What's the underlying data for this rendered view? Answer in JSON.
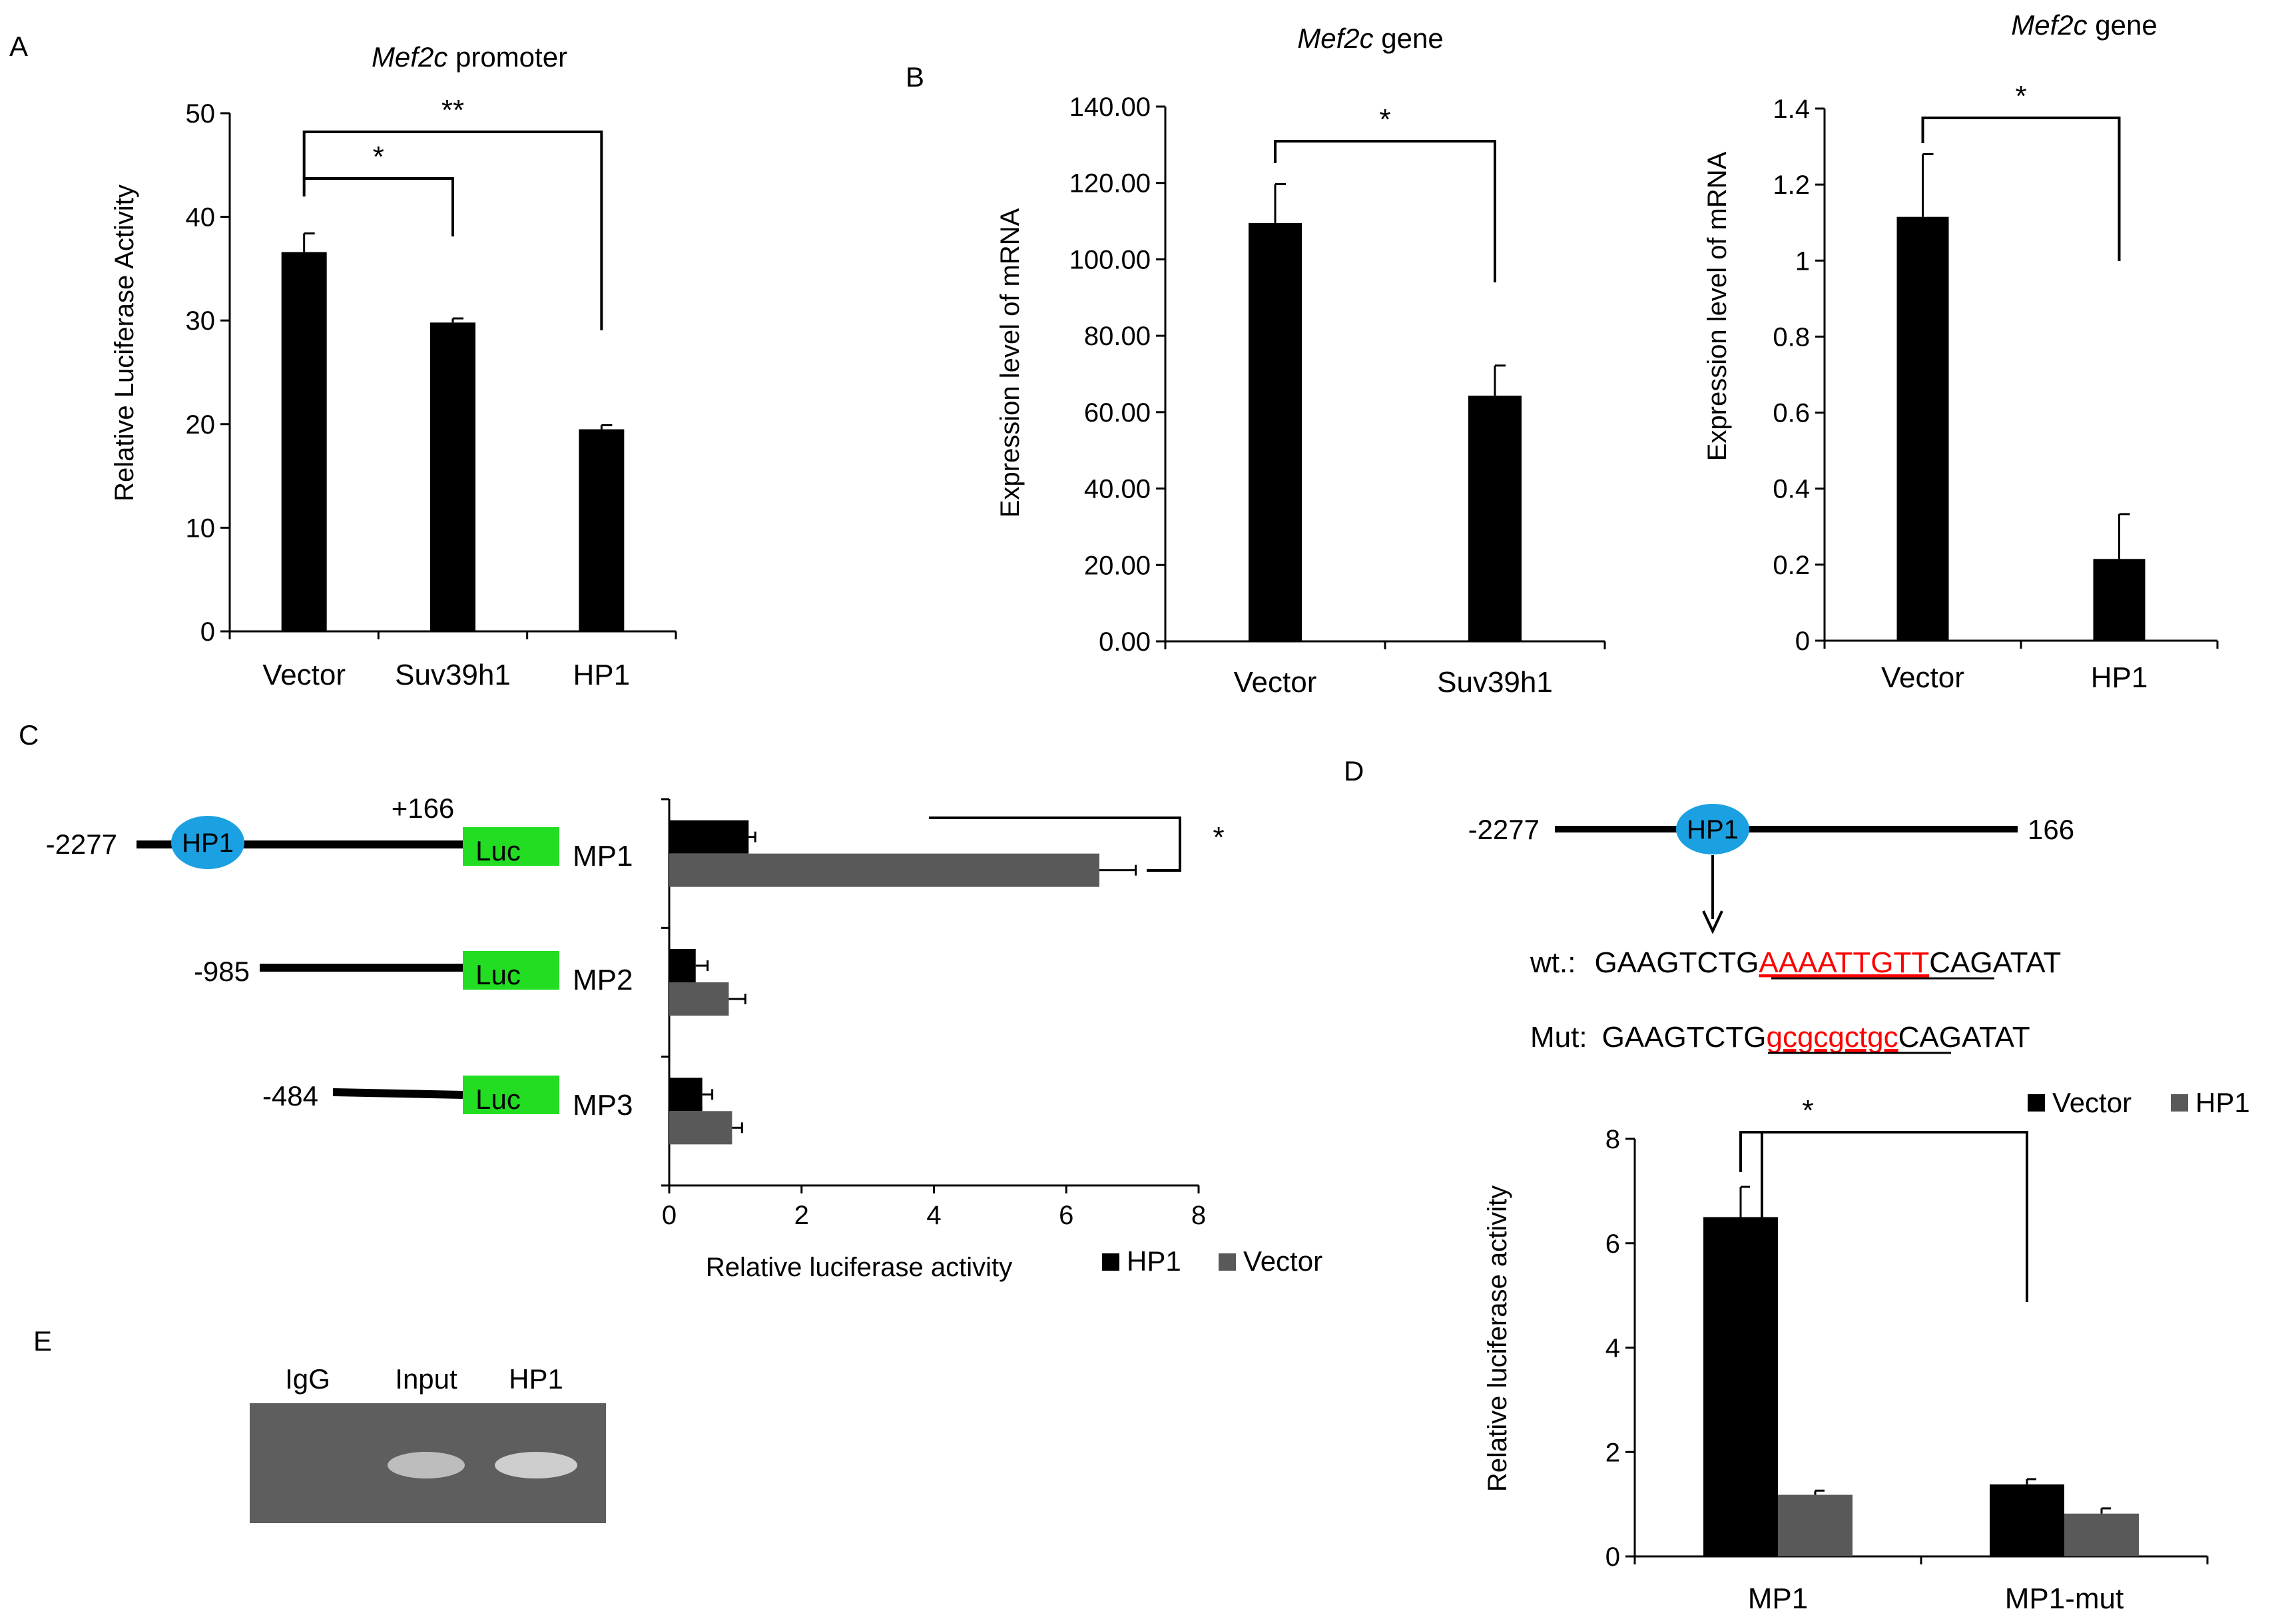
{
  "colors": {
    "black": "#000000",
    "grey": "#595959",
    "blue": "#1ba1e2",
    "green": "#22dd22",
    "red": "#ff0000"
  },
  "panels": {
    "A": "A",
    "B": "B",
    "C": "C",
    "D": "D",
    "E": "E"
  },
  "chart_data": [
    {
      "id": "A",
      "type": "bar",
      "title_italic": "Mef2c",
      "title_rest": " promoter",
      "ylabel": "Relative Luciferase Activity",
      "ylim": [
        0,
        50
      ],
      "yticks": [
        "0",
        "10",
        "20",
        "30",
        "40",
        "50"
      ],
      "categories": [
        "Vector",
        "Suv39h1",
        "HP1"
      ],
      "values": [
        36.6,
        29.8,
        19.5
      ],
      "errors": [
        1.8,
        0.4,
        0.4
      ],
      "significance": [
        "*",
        "**"
      ]
    },
    {
      "id": "B1",
      "type": "bar",
      "title_italic": "Mef2c",
      "title_rest": " gene",
      "ylabel": "Expression level of mRNA",
      "ylim": [
        0,
        140
      ],
      "yticks": [
        "0.00",
        "20.00",
        "40.00",
        "60.00",
        "80.00",
        "100.00",
        "120.00",
        "140.00"
      ],
      "categories": [
        "Vector",
        "Suv39h1"
      ],
      "values": [
        109.5,
        64.3
      ],
      "errors": [
        10.2,
        7.9
      ],
      "significance": [
        "*"
      ]
    },
    {
      "id": "B2",
      "type": "bar",
      "title_italic": "Mef2c",
      "title_rest": " gene",
      "ylabel": "Expression level of mRNA",
      "ylim": [
        0,
        1.4
      ],
      "yticks": [
        "0",
        "0.2",
        "0.4",
        "0.6",
        "0.8",
        "1",
        "1.2",
        "1.4"
      ],
      "categories": [
        "Vector",
        "HP1"
      ],
      "values": [
        1.115,
        0.215
      ],
      "errors": [
        0.165,
        0.118
      ],
      "significance": [
        "*"
      ]
    },
    {
      "id": "C",
      "type": "bar",
      "orientation": "horizontal",
      "xlabel": "Relative luciferase activity",
      "xlim": [
        0,
        8
      ],
      "xticks": [
        "0",
        "2",
        "4",
        "6",
        "8"
      ],
      "categories": [
        "MP1",
        "MP2",
        "MP3"
      ],
      "series": [
        {
          "name": "HP1",
          "values": [
            1.2,
            0.4,
            0.5
          ],
          "errors": [
            0.1,
            0.18,
            0.15
          ]
        },
        {
          "name": "Vector",
          "values": [
            6.5,
            0.9,
            0.95
          ],
          "errors": [
            0.55,
            0.25,
            0.15
          ]
        }
      ],
      "significance": [
        "*"
      ]
    },
    {
      "id": "D",
      "type": "bar",
      "ylabel": "Relative luciferase activity",
      "ylim": [
        0,
        8
      ],
      "yticks": [
        "0",
        "2",
        "4",
        "6",
        "8"
      ],
      "categories": [
        "MP1",
        "MP1-mut"
      ],
      "series": [
        {
          "name": "Vector",
          "values": [
            6.5,
            1.38
          ],
          "errors": [
            0.58,
            0.1
          ]
        },
        {
          "name": "HP1",
          "values": [
            1.18,
            0.82
          ],
          "errors": [
            0.08,
            0.1
          ]
        }
      ],
      "significance": [
        "*"
      ]
    }
  ],
  "constructs": {
    "hp1_label": "HP1",
    "luc_label": "Luc",
    "mp1": {
      "start": "-2277",
      "end": "+166",
      "name": "MP1"
    },
    "mp2": {
      "start": "-985",
      "name": "MP2"
    },
    "mp3": {
      "start": "-484",
      "name": "MP3"
    }
  },
  "panel_d": {
    "start": "-2277",
    "end": "166",
    "wt_label": "wt.:",
    "wt_pre": "GAAGTCTG",
    "wt_site": "AAAATTGTT",
    "wt_post": "CAGATAT",
    "mut_label": "Mut:",
    "mut_pre": "GAAGTCTG",
    "mut_site": "gcgcgctgc",
    "mut_post": "CAGATAT"
  },
  "gel": {
    "lanes": [
      "IgG",
      "Input",
      "HP1"
    ]
  }
}
